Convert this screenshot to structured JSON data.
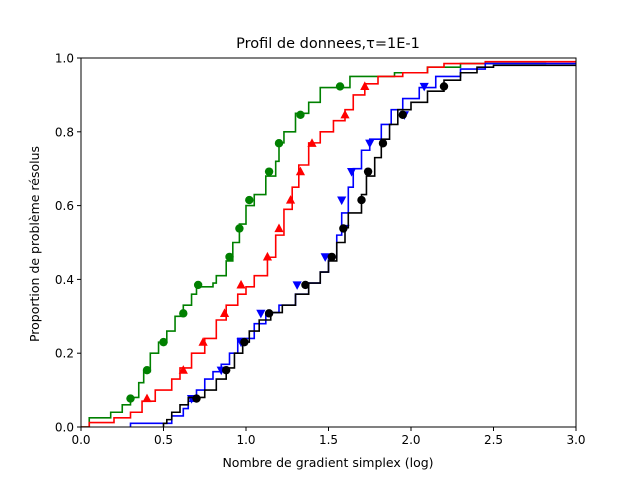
{
  "chart_data": {
    "type": "line",
    "title": "Profil de donnees,τ=1E-1",
    "xlabel": "Nombre de gradient simplex (log)",
    "ylabel": "Proportion de problème résolus",
    "xlim": [
      0.0,
      3.0
    ],
    "ylim": [
      0.0,
      1.0
    ],
    "xticks": [
      0.0,
      0.5,
      1.0,
      1.5,
      2.0,
      2.5,
      3.0
    ],
    "xtick_labels": [
      "0.0",
      "0.5",
      "1.0",
      "1.5",
      "2.0",
      "2.5",
      "3.0"
    ],
    "yticks": [
      0.0,
      0.2,
      0.4,
      0.6,
      0.8,
      1.0
    ],
    "ytick_labels": [
      "0.0",
      "0.2",
      "0.4",
      "0.6",
      "0.8",
      "1.0"
    ],
    "grid": false,
    "series": [
      {
        "color": "#008000",
        "marker": "circle",
        "points": [
          [
            0.0,
            0.0
          ],
          [
            0.05,
            0.0
          ],
          [
            0.05,
            0.025
          ],
          [
            0.18,
            0.025
          ],
          [
            0.18,
            0.04
          ],
          [
            0.25,
            0.04
          ],
          [
            0.25,
            0.06
          ],
          [
            0.3,
            0.06
          ],
          [
            0.3,
            0.08
          ],
          [
            0.35,
            0.08
          ],
          [
            0.35,
            0.12
          ],
          [
            0.38,
            0.12
          ],
          [
            0.38,
            0.15
          ],
          [
            0.42,
            0.15
          ],
          [
            0.42,
            0.2
          ],
          [
            0.47,
            0.2
          ],
          [
            0.47,
            0.23
          ],
          [
            0.52,
            0.23
          ],
          [
            0.52,
            0.26
          ],
          [
            0.57,
            0.26
          ],
          [
            0.57,
            0.3
          ],
          [
            0.62,
            0.3
          ],
          [
            0.62,
            0.33
          ],
          [
            0.67,
            0.33
          ],
          [
            0.67,
            0.36
          ],
          [
            0.7,
            0.36
          ],
          [
            0.7,
            0.38
          ],
          [
            0.8,
            0.38
          ],
          [
            0.8,
            0.39
          ],
          [
            0.82,
            0.39
          ],
          [
            0.82,
            0.41
          ],
          [
            0.88,
            0.41
          ],
          [
            0.88,
            0.45
          ],
          [
            0.92,
            0.45
          ],
          [
            0.92,
            0.5
          ],
          [
            0.96,
            0.5
          ],
          [
            0.96,
            0.55
          ],
          [
            1.0,
            0.55
          ],
          [
            1.0,
            0.6
          ],
          [
            1.05,
            0.6
          ],
          [
            1.05,
            0.63
          ],
          [
            1.12,
            0.63
          ],
          [
            1.12,
            0.68
          ],
          [
            1.18,
            0.68
          ],
          [
            1.18,
            0.72
          ],
          [
            1.2,
            0.72
          ],
          [
            1.2,
            0.77
          ],
          [
            1.23,
            0.77
          ],
          [
            1.23,
            0.8
          ],
          [
            1.3,
            0.8
          ],
          [
            1.3,
            0.85
          ],
          [
            1.38,
            0.85
          ],
          [
            1.38,
            0.88
          ],
          [
            1.45,
            0.88
          ],
          [
            1.45,
            0.92
          ],
          [
            1.63,
            0.92
          ],
          [
            1.63,
            0.95
          ],
          [
            1.9,
            0.95
          ],
          [
            1.9,
            0.96
          ],
          [
            2.1,
            0.96
          ],
          [
            2.1,
            0.975
          ],
          [
            2.3,
            0.975
          ],
          [
            2.3,
            0.985
          ],
          [
            2.82,
            0.985
          ]
        ],
        "marker_points": [
          [
            0.3,
            0.077
          ],
          [
            0.4,
            0.154
          ],
          [
            0.5,
            0.23
          ],
          [
            0.62,
            0.308
          ],
          [
            0.71,
            0.385
          ],
          [
            0.9,
            0.461
          ],
          [
            0.96,
            0.538
          ],
          [
            1.02,
            0.615
          ],
          [
            1.14,
            0.692
          ],
          [
            1.2,
            0.769
          ],
          [
            1.33,
            0.846
          ],
          [
            1.57,
            0.923
          ]
        ]
      },
      {
        "color": "#ff0000",
        "marker": "triangle-up",
        "points": [
          [
            0.0,
            0.0
          ],
          [
            0.05,
            0.0
          ],
          [
            0.05,
            0.012
          ],
          [
            0.2,
            0.012
          ],
          [
            0.2,
            0.025
          ],
          [
            0.3,
            0.025
          ],
          [
            0.3,
            0.04
          ],
          [
            0.37,
            0.04
          ],
          [
            0.37,
            0.07
          ],
          [
            0.45,
            0.07
          ],
          [
            0.45,
            0.1
          ],
          [
            0.55,
            0.1
          ],
          [
            0.55,
            0.13
          ],
          [
            0.6,
            0.13
          ],
          [
            0.6,
            0.16
          ],
          [
            0.67,
            0.16
          ],
          [
            0.67,
            0.2
          ],
          [
            0.75,
            0.2
          ],
          [
            0.75,
            0.24
          ],
          [
            0.82,
            0.24
          ],
          [
            0.82,
            0.29
          ],
          [
            0.88,
            0.29
          ],
          [
            0.88,
            0.33
          ],
          [
            0.95,
            0.33
          ],
          [
            0.95,
            0.36
          ],
          [
            1.0,
            0.36
          ],
          [
            1.0,
            0.38
          ],
          [
            1.05,
            0.38
          ],
          [
            1.05,
            0.41
          ],
          [
            1.13,
            0.41
          ],
          [
            1.13,
            0.46
          ],
          [
            1.18,
            0.46
          ],
          [
            1.18,
            0.52
          ],
          [
            1.23,
            0.52
          ],
          [
            1.23,
            0.59
          ],
          [
            1.28,
            0.59
          ],
          [
            1.28,
            0.65
          ],
          [
            1.32,
            0.65
          ],
          [
            1.32,
            0.71
          ],
          [
            1.38,
            0.71
          ],
          [
            1.38,
            0.77
          ],
          [
            1.45,
            0.77
          ],
          [
            1.45,
            0.8
          ],
          [
            1.53,
            0.8
          ],
          [
            1.53,
            0.83
          ],
          [
            1.6,
            0.83
          ],
          [
            1.6,
            0.86
          ],
          [
            1.65,
            0.86
          ],
          [
            1.65,
            0.9
          ],
          [
            1.72,
            0.9
          ],
          [
            1.72,
            0.93
          ],
          [
            1.8,
            0.93
          ],
          [
            1.8,
            0.95
          ],
          [
            1.95,
            0.95
          ],
          [
            1.95,
            0.96
          ],
          [
            2.1,
            0.96
          ],
          [
            2.1,
            0.975
          ],
          [
            2.2,
            0.975
          ],
          [
            2.2,
            0.985
          ],
          [
            2.45,
            0.985
          ],
          [
            2.45,
            0.99
          ],
          [
            3.0,
            0.99
          ]
        ],
        "marker_points": [
          [
            0.4,
            0.077
          ],
          [
            0.62,
            0.154
          ],
          [
            0.74,
            0.23
          ],
          [
            0.87,
            0.308
          ],
          [
            0.97,
            0.385
          ],
          [
            1.13,
            0.461
          ],
          [
            1.2,
            0.538
          ],
          [
            1.27,
            0.615
          ],
          [
            1.33,
            0.692
          ],
          [
            1.4,
            0.769
          ],
          [
            1.6,
            0.846
          ],
          [
            1.72,
            0.923
          ]
        ]
      },
      {
        "color": "#0000ff",
        "marker": "triangle-down",
        "points": [
          [
            0.3,
            0.0
          ],
          [
            0.3,
            0.01
          ],
          [
            0.55,
            0.01
          ],
          [
            0.55,
            0.03
          ],
          [
            0.62,
            0.03
          ],
          [
            0.62,
            0.05
          ],
          [
            0.65,
            0.05
          ],
          [
            0.65,
            0.07
          ],
          [
            0.7,
            0.07
          ],
          [
            0.7,
            0.1
          ],
          [
            0.75,
            0.1
          ],
          [
            0.75,
            0.13
          ],
          [
            0.8,
            0.13
          ],
          [
            0.8,
            0.15
          ],
          [
            0.85,
            0.15
          ],
          [
            0.85,
            0.17
          ],
          [
            0.9,
            0.17
          ],
          [
            0.9,
            0.2
          ],
          [
            0.95,
            0.2
          ],
          [
            0.95,
            0.24
          ],
          [
            1.05,
            0.24
          ],
          [
            1.05,
            0.28
          ],
          [
            1.12,
            0.28
          ],
          [
            1.12,
            0.31
          ],
          [
            1.2,
            0.31
          ],
          [
            1.2,
            0.33
          ],
          [
            1.3,
            0.33
          ],
          [
            1.3,
            0.36
          ],
          [
            1.38,
            0.36
          ],
          [
            1.38,
            0.39
          ],
          [
            1.45,
            0.39
          ],
          [
            1.45,
            0.42
          ],
          [
            1.5,
            0.42
          ],
          [
            1.5,
            0.46
          ],
          [
            1.55,
            0.46
          ],
          [
            1.55,
            0.52
          ],
          [
            1.58,
            0.52
          ],
          [
            1.58,
            0.58
          ],
          [
            1.62,
            0.58
          ],
          [
            1.62,
            0.65
          ],
          [
            1.65,
            0.65
          ],
          [
            1.65,
            0.7
          ],
          [
            1.7,
            0.7
          ],
          [
            1.7,
            0.75
          ],
          [
            1.75,
            0.75
          ],
          [
            1.75,
            0.78
          ],
          [
            1.82,
            0.78
          ],
          [
            1.82,
            0.82
          ],
          [
            1.88,
            0.82
          ],
          [
            1.88,
            0.86
          ],
          [
            1.95,
            0.86
          ],
          [
            1.95,
            0.89
          ],
          [
            2.05,
            0.89
          ],
          [
            2.05,
            0.92
          ],
          [
            2.15,
            0.92
          ],
          [
            2.15,
            0.95
          ],
          [
            2.3,
            0.95
          ],
          [
            2.3,
            0.97
          ],
          [
            2.45,
            0.97
          ],
          [
            2.45,
            0.985
          ],
          [
            3.0,
            0.985
          ]
        ],
        "marker_points": [
          [
            0.67,
            0.077
          ],
          [
            0.85,
            0.154
          ],
          [
            0.97,
            0.23
          ],
          [
            1.09,
            0.308
          ],
          [
            1.31,
            0.385
          ],
          [
            1.48,
            0.461
          ],
          [
            1.6,
            0.538
          ],
          [
            1.58,
            0.615
          ],
          [
            1.64,
            0.692
          ],
          [
            1.75,
            0.769
          ],
          [
            1.96,
            0.846
          ],
          [
            2.08,
            0.923
          ]
        ]
      },
      {
        "color": "#000000",
        "marker": "circle",
        "points": [
          [
            0.5,
            0.0
          ],
          [
            0.5,
            0.01
          ],
          [
            0.52,
            0.01
          ],
          [
            0.52,
            0.02
          ],
          [
            0.55,
            0.02
          ],
          [
            0.55,
            0.04
          ],
          [
            0.6,
            0.04
          ],
          [
            0.6,
            0.06
          ],
          [
            0.65,
            0.06
          ],
          [
            0.65,
            0.08
          ],
          [
            0.75,
            0.08
          ],
          [
            0.75,
            0.1
          ],
          [
            0.82,
            0.1
          ],
          [
            0.82,
            0.13
          ],
          [
            0.88,
            0.13
          ],
          [
            0.88,
            0.16
          ],
          [
            0.93,
            0.16
          ],
          [
            0.93,
            0.2
          ],
          [
            0.98,
            0.2
          ],
          [
            0.98,
            0.23
          ],
          [
            1.02,
            0.23
          ],
          [
            1.02,
            0.26
          ],
          [
            1.08,
            0.26
          ],
          [
            1.08,
            0.29
          ],
          [
            1.15,
            0.29
          ],
          [
            1.15,
            0.31
          ],
          [
            1.22,
            0.31
          ],
          [
            1.22,
            0.33
          ],
          [
            1.3,
            0.33
          ],
          [
            1.3,
            0.36
          ],
          [
            1.38,
            0.36
          ],
          [
            1.38,
            0.39
          ],
          [
            1.45,
            0.39
          ],
          [
            1.45,
            0.42
          ],
          [
            1.5,
            0.42
          ],
          [
            1.5,
            0.45
          ],
          [
            1.55,
            0.45
          ],
          [
            1.55,
            0.5
          ],
          [
            1.6,
            0.5
          ],
          [
            1.6,
            0.54
          ],
          [
            1.62,
            0.54
          ],
          [
            1.62,
            0.58
          ],
          [
            1.7,
            0.58
          ],
          [
            1.7,
            0.63
          ],
          [
            1.73,
            0.63
          ],
          [
            1.73,
            0.68
          ],
          [
            1.78,
            0.68
          ],
          [
            1.78,
            0.73
          ],
          [
            1.82,
            0.73
          ],
          [
            1.82,
            0.78
          ],
          [
            1.87,
            0.78
          ],
          [
            1.87,
            0.82
          ],
          [
            1.92,
            0.82
          ],
          [
            1.92,
            0.86
          ],
          [
            2.0,
            0.86
          ],
          [
            2.0,
            0.88
          ],
          [
            2.1,
            0.88
          ],
          [
            2.1,
            0.91
          ],
          [
            2.2,
            0.91
          ],
          [
            2.2,
            0.94
          ],
          [
            2.3,
            0.94
          ],
          [
            2.3,
            0.96
          ],
          [
            2.4,
            0.96
          ],
          [
            2.4,
            0.975
          ],
          [
            2.5,
            0.975
          ],
          [
            2.5,
            0.98
          ],
          [
            3.0,
            0.98
          ]
        ],
        "marker_points": [
          [
            0.7,
            0.077
          ],
          [
            0.88,
            0.154
          ],
          [
            0.99,
            0.23
          ],
          [
            1.14,
            0.308
          ],
          [
            1.36,
            0.385
          ],
          [
            1.52,
            0.461
          ],
          [
            1.59,
            0.538
          ],
          [
            1.7,
            0.615
          ],
          [
            1.74,
            0.692
          ],
          [
            1.83,
            0.769
          ],
          [
            1.95,
            0.846
          ],
          [
            2.2,
            0.923
          ]
        ]
      }
    ]
  }
}
